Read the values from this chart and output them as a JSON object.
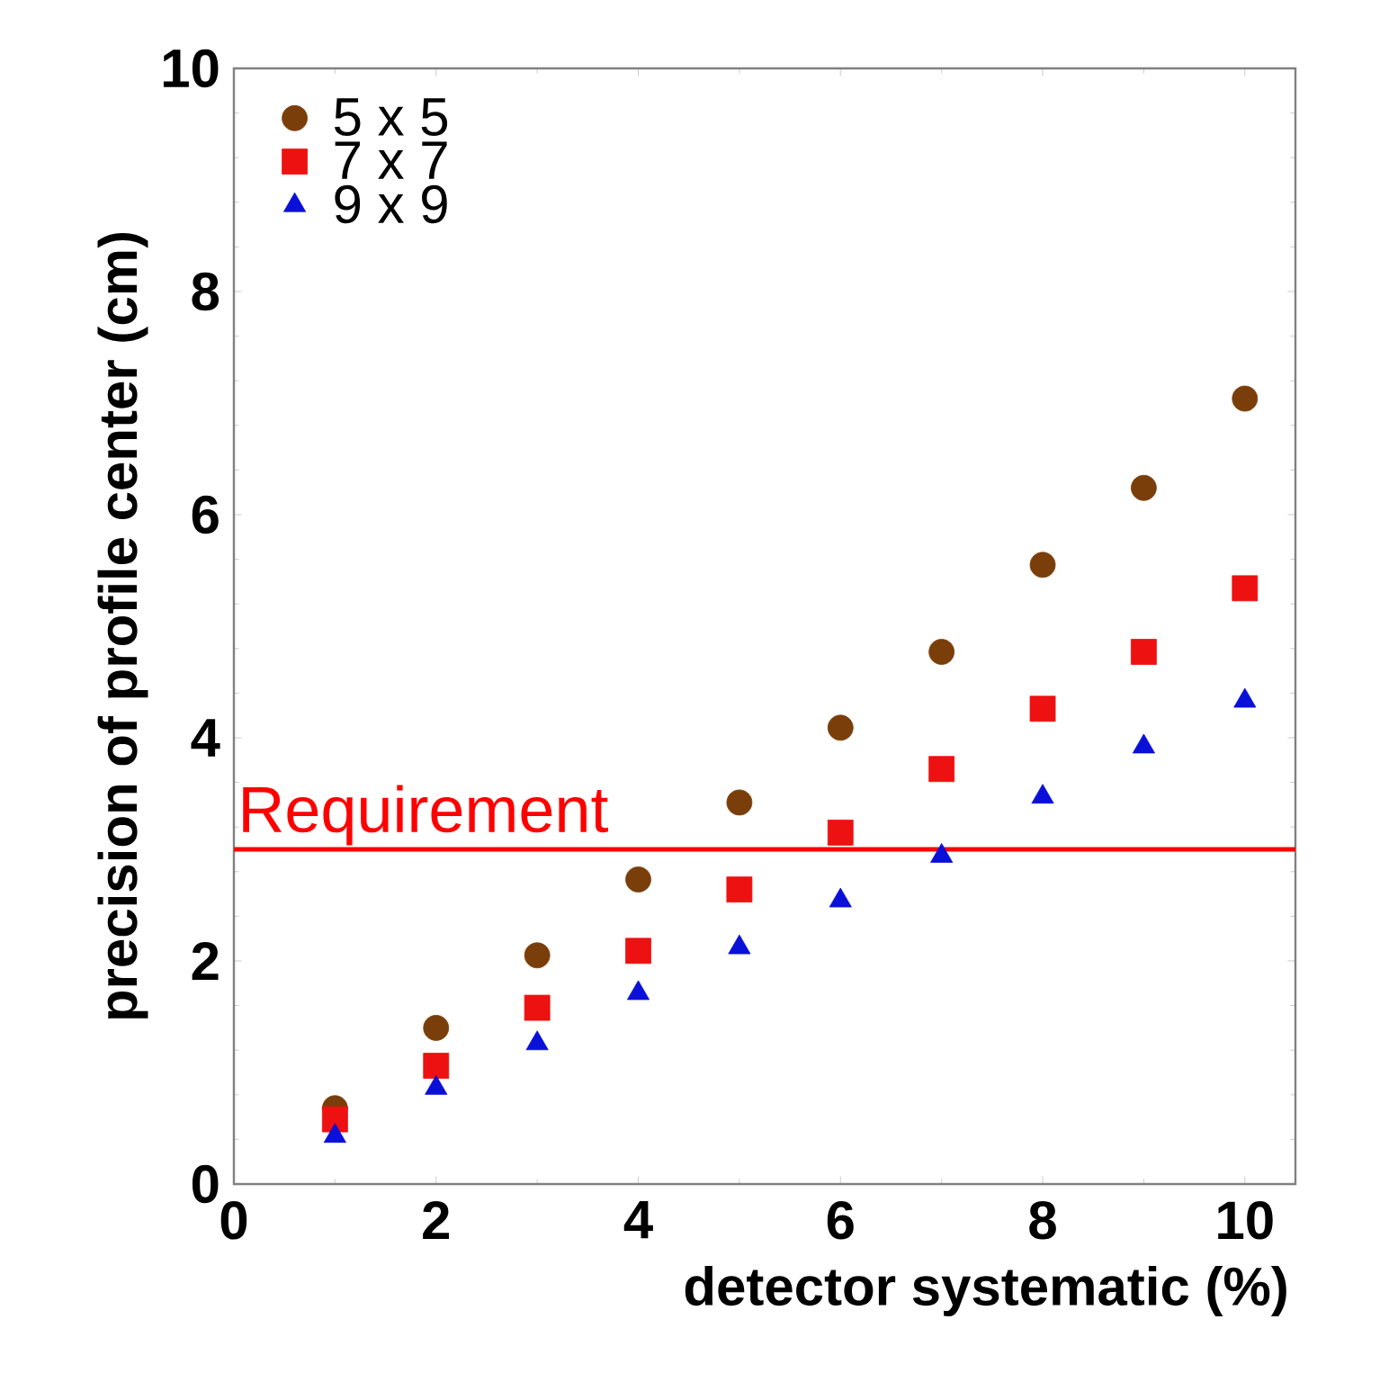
{
  "chart_data": {
    "type": "scatter",
    "xlabel": "detector systematic (%)",
    "ylabel": "precision of profile center (cm)",
    "x": [
      1,
      2,
      3,
      4,
      5,
      6,
      7,
      8,
      9,
      10
    ],
    "series": [
      {
        "name": "5 x 5",
        "color": "#7a3e0a",
        "marker": "circle",
        "values": [
          0.68,
          1.4,
          2.05,
          2.73,
          3.42,
          4.09,
          4.77,
          5.55,
          6.24,
          7.04
        ]
      },
      {
        "name": "7 x 7",
        "color": "#ee1111",
        "marker": "square",
        "values": [
          0.58,
          1.06,
          1.58,
          2.09,
          2.64,
          3.15,
          3.72,
          4.26,
          4.77,
          5.34
        ]
      },
      {
        "name": "9 x 9",
        "color": "#0a10d8",
        "marker": "triangle",
        "values": [
          0.43,
          0.86,
          1.26,
          1.71,
          2.12,
          2.54,
          2.94,
          3.47,
          3.92,
          4.33
        ]
      }
    ],
    "xlim": [
      0,
      10.5
    ],
    "ylim": [
      0,
      10
    ],
    "xticks": [
      0,
      2,
      4,
      6,
      8,
      10
    ],
    "yticks": [
      0,
      2,
      4,
      6,
      8,
      10
    ],
    "ref_lines": [
      {
        "axis": "y",
        "value": 3,
        "label": "Requirement",
        "color": "#ff0000",
        "line_style": "solid"
      }
    ],
    "legend": "top left",
    "grid": false
  }
}
